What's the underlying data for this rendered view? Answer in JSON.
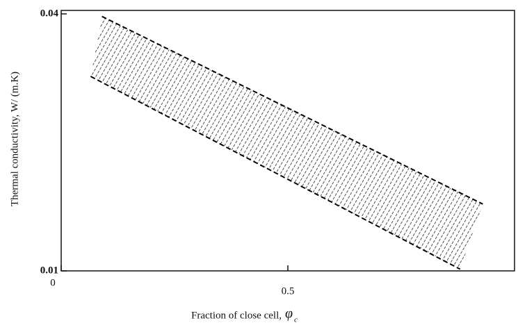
{
  "chart_data": {
    "type": "band",
    "x_label": "Fraction of close cell,",
    "x_label_symbol": "φ",
    "x_label_subscript": "c",
    "y_label": "Thermal conductivity, W/ (m.K)",
    "xlim": [
      0,
      1
    ],
    "xticks": [
      0,
      0.5
    ],
    "ylim": [
      0.01,
      0.04
    ],
    "yticks": [
      0.01,
      0.04
    ],
    "series": [
      {
        "color": "#000000",
        "x": [
          0.09,
          0.93
        ],
        "values": [
          0.0397,
          0.0178
        ]
      },
      {
        "color": "#000000",
        "x": [
          0.065,
          0.88
        ],
        "values": [
          0.0327,
          0.0102
        ]
      }
    ]
  }
}
